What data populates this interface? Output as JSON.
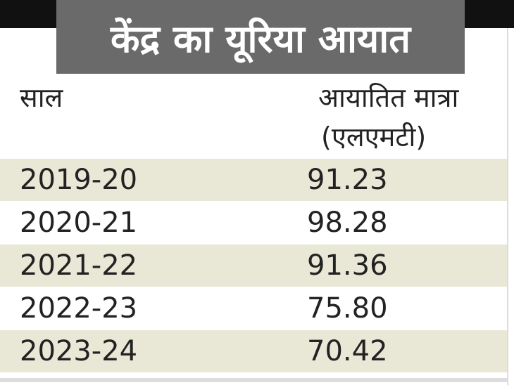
{
  "title": "केंद्र का यूरिया आयात",
  "table": {
    "header": [
      "साल",
      "आयातित मात्रा"
    ],
    "unit": "(एलएमटी)",
    "rows": [
      [
        "2019-20",
        "91.23"
      ],
      [
        "2020-21",
        "98.28"
      ],
      [
        "2021-22",
        "91.36"
      ],
      [
        "2022-23",
        "75.80"
      ],
      [
        "2023-24",
        "70.42"
      ]
    ]
  }
}
